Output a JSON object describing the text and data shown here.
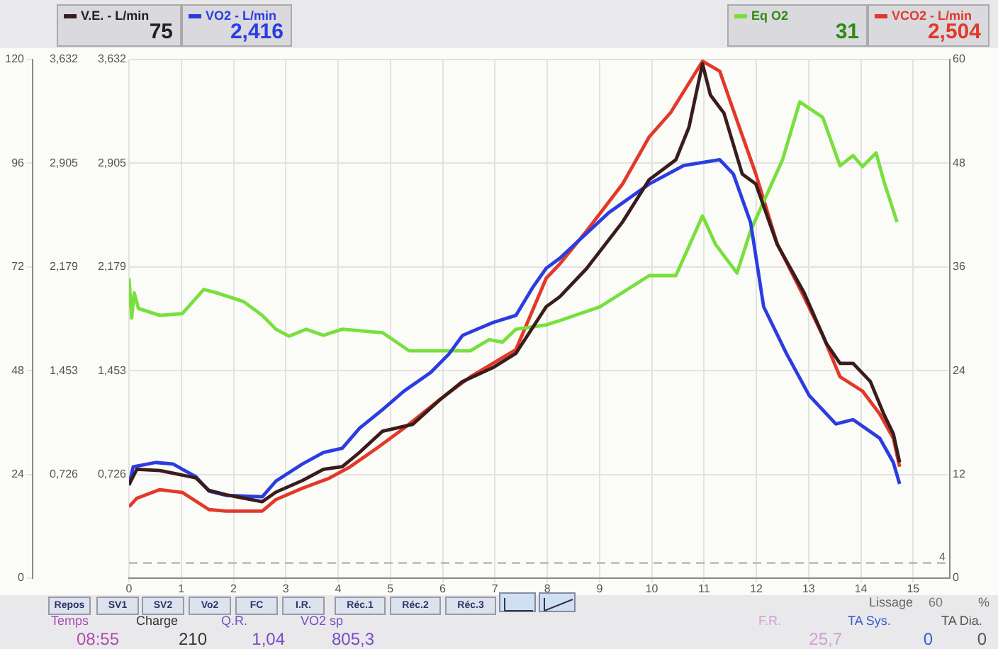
{
  "chart_data": {
    "type": "line",
    "series": [
      {
        "name": "V.E. - L/min",
        "color": "#3a1c1c",
        "axis": "y",
        "x": [
          0,
          0.15,
          0.59,
          1.28,
          1.53,
          1.86,
          2.55,
          2.81,
          3.32,
          3.72,
          4.08,
          4.41,
          4.85,
          5.43,
          5.94,
          6.38,
          6.96,
          7.4,
          7.98,
          8.24,
          8.75,
          9.44,
          9.95,
          10.46,
          10.71,
          10.97,
          11.12,
          11.38,
          11.73,
          11.99,
          12.4,
          12.91,
          13.34,
          13.6,
          13.85,
          14.18,
          14.44,
          14.62,
          14.74
        ],
        "values": [
          21.6,
          25.2,
          24.9,
          23.2,
          20.3,
          19.3,
          17.7,
          19.9,
          22.6,
          25.2,
          25.8,
          29.1,
          34,
          35.6,
          41.2,
          45.5,
          48.7,
          52,
          62.8,
          65.1,
          71.6,
          82.4,
          92.2,
          96.8,
          104.3,
          119,
          111.8,
          107.6,
          93.5,
          91.2,
          77.2,
          66.1,
          54.3,
          49.7,
          49.7,
          45.5,
          37.9,
          33.4,
          26.8
        ]
      },
      {
        "name": "VO2 - L/min",
        "color": "#2b3de0",
        "axis": "y2",
        "x": [
          0,
          0.08,
          0.51,
          0.84,
          1.28,
          1.53,
          1.86,
          2.55,
          2.81,
          3.32,
          3.72,
          4.08,
          4.41,
          4.85,
          5.26,
          5.77,
          6.12,
          6.38,
          6.96,
          7.4,
          7.73,
          7.98,
          8.24,
          9.18,
          9.95,
          10.61,
          11.3,
          11.56,
          11.89,
          12.14,
          12.58,
          13.01,
          13.52,
          13.85,
          14.36,
          14.62,
          14.74
        ],
        "values": [
          0.65,
          0.78,
          0.81,
          0.8,
          0.71,
          0.61,
          0.58,
          0.57,
          0.68,
          0.8,
          0.88,
          0.91,
          1.05,
          1.18,
          1.31,
          1.44,
          1.57,
          1.7,
          1.79,
          1.84,
          2.04,
          2.17,
          2.24,
          2.56,
          2.76,
          2.89,
          2.93,
          2.83,
          2.49,
          1.9,
          1.57,
          1.28,
          1.08,
          1.11,
          0.98,
          0.81,
          0.66
        ]
      },
      {
        "name": "Eq O2",
        "color": "#78e03c",
        "axis": "y3",
        "x": [
          0,
          0.05,
          0.1,
          0.18,
          0.59,
          1.02,
          1.43,
          1.68,
          2.19,
          2.55,
          2.81,
          3.06,
          3.39,
          3.72,
          4.08,
          4.85,
          5.36,
          6.02,
          6.53,
          6.89,
          7.14,
          7.4,
          7.98,
          8.24,
          9.01,
          9.95,
          10.46,
          10.97,
          11.22,
          11.63,
          11.89,
          12.5,
          12.83,
          13.27,
          13.6,
          13.85,
          14.03,
          14.29,
          14.44,
          14.69
        ],
        "values": [
          34.7,
          30.1,
          33,
          31.2,
          30.4,
          30.6,
          33.4,
          33,
          32,
          30.4,
          28.8,
          28,
          28.8,
          28.1,
          28.8,
          28.4,
          26.3,
          26.3,
          26.3,
          27.6,
          27.3,
          28.8,
          29.3,
          29.8,
          31.4,
          35,
          35,
          41.9,
          38.6,
          35.3,
          40.2,
          48.4,
          55.1,
          53.3,
          47.7,
          48.9,
          47.6,
          49.2,
          45.9,
          41.2
        ]
      },
      {
        "name": "VCO2 - L/min",
        "color": "#e2392a",
        "axis": "y2",
        "x": [
          0,
          0.15,
          0.59,
          1.02,
          1.53,
          1.86,
          2.55,
          2.81,
          3.32,
          3.83,
          4.23,
          4.74,
          5.26,
          5.94,
          6.53,
          7.4,
          7.98,
          8.24,
          8.75,
          9.44,
          9.95,
          10.36,
          10.97,
          11.3,
          11.48,
          11.99,
          12.4,
          12.91,
          13.27,
          13.6,
          14.03,
          14.36,
          14.62,
          14.74
        ],
        "values": [
          0.5,
          0.56,
          0.62,
          0.6,
          0.48,
          0.47,
          0.47,
          0.55,
          0.63,
          0.7,
          0.78,
          0.91,
          1.05,
          1.25,
          1.41,
          1.6,
          2.1,
          2.2,
          2.43,
          2.76,
          3.09,
          3.26,
          3.62,
          3.55,
          3.36,
          2.83,
          2.34,
          1.97,
          1.7,
          1.41,
          1.31,
          1.15,
          0.98,
          0.78
        ]
      }
    ],
    "xlim": [
      0,
      15.7
    ],
    "xticks": [
      0,
      1,
      2,
      3,
      4,
      5,
      6,
      7,
      8,
      9,
      10,
      11,
      12,
      13,
      14,
      15
    ],
    "ylim": [
      0,
      120
    ],
    "yticks": [
      0,
      24,
      48,
      72,
      96,
      120
    ],
    "y2lim": [
      0,
      3.632
    ],
    "y2ticks": [
      {
        "value": 0,
        "label": null
      },
      {
        "value": 0.726,
        "label": "0,726"
      },
      {
        "value": 1.453,
        "label": "1,453"
      },
      {
        "value": 2.179,
        "label": "2,179"
      },
      {
        "value": 2.905,
        "label": "2,905"
      },
      {
        "value": 3.632,
        "label": "3,632"
      }
    ],
    "y3lim": [
      0,
      60
    ],
    "y3ticks": [
      0,
      12,
      24,
      36,
      48,
      60
    ],
    "ref_lines": [
      {
        "axis": "y",
        "value": 3.5,
        "label": "4",
        "line_style": "dashed",
        "color": "#b0b0b0"
      }
    ],
    "grid": true,
    "legend": "top",
    "annotations": [
      "75",
      "2,416",
      "31",
      "2,504",
      "Repos",
      "SV1",
      "SV2",
      "Vo2",
      "FC",
      "I.R.",
      "Réc.1",
      "Réc.2",
      "Réc.3",
      "Lissage",
      "60",
      "%",
      "Temps",
      "08:55",
      "Charge",
      "210",
      "Q.R.",
      "1,04",
      "VO2 sp",
      "805,3",
      "F.R.",
      "25,7",
      "TA Sys.",
      "0",
      "TA Dia.",
      "0"
    ]
  }
}
